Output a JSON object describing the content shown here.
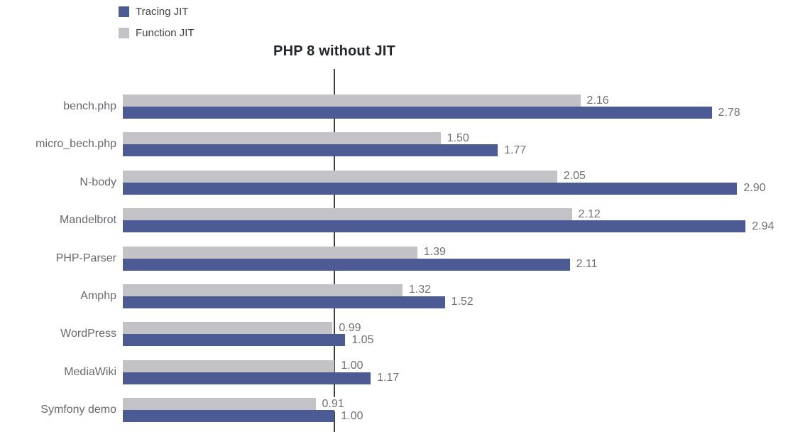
{
  "legend": {
    "items": [
      {
        "label": "Tracing JIT",
        "color": "#4d5b94"
      },
      {
        "label": "Function JIT",
        "color": "#c3c3c7"
      }
    ]
  },
  "chart_data": {
    "type": "bar",
    "orientation": "horizontal",
    "title": "PHP 8 without JIT",
    "categories": [
      "bench.php",
      "micro_bech.php",
      "N-body",
      "Mandelbrot",
      "PHP-Parser",
      "Amphp",
      "WordPress",
      "MediaWiki",
      "Symfony demo"
    ],
    "series": [
      {
        "name": "Tracing JIT",
        "color": "#4d5b94",
        "values": [
          2.78,
          1.77,
          2.9,
          2.94,
          2.11,
          1.52,
          1.05,
          1.17,
          1.0
        ]
      },
      {
        "name": "Function JIT",
        "color": "#c3c3c7",
        "values": [
          2.16,
          1.5,
          2.05,
          2.12,
          1.39,
          1.32,
          0.99,
          1.0,
          0.91
        ]
      }
    ],
    "display_order": [
      1,
      0
    ],
    "reference_line": {
      "value": 1.0,
      "label": "PHP 8 without JIT"
    },
    "value_label_format": "0.00",
    "xlabel": "",
    "ylabel": "",
    "xlim": [
      0,
      3.14
    ],
    "grid": false,
    "legend_position": "top-left"
  }
}
